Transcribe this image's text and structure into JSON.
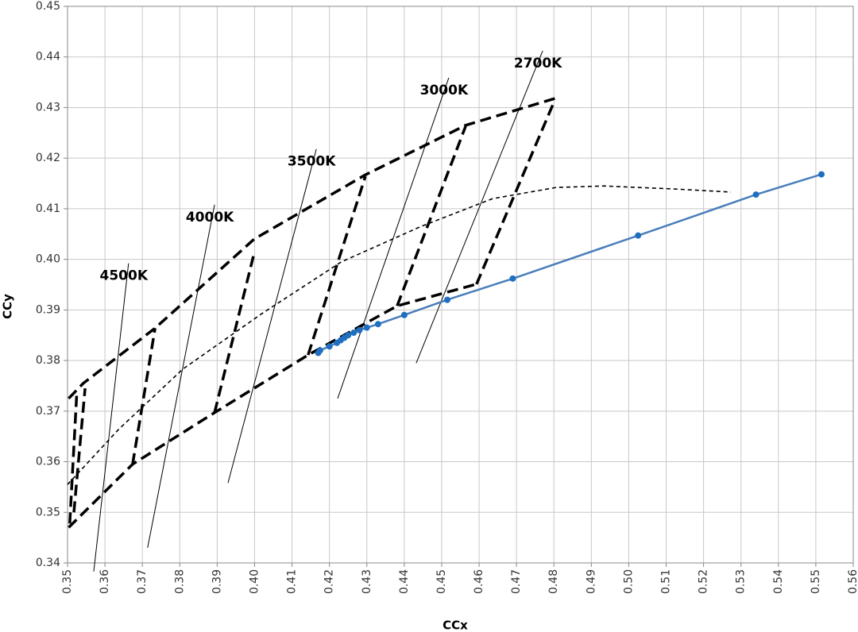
{
  "chart_data": {
    "type": "line",
    "x_label": "CCx",
    "y_label": "CCy",
    "xlim": [
      0.35,
      0.56
    ],
    "ylim": [
      0.34,
      0.45
    ],
    "xticks": [
      0.35,
      0.36,
      0.37,
      0.38,
      0.39,
      {
        "value": 0.4,
        "label": "0.40"
      },
      0.41,
      0.42,
      0.43,
      0.44,
      0.45,
      0.46,
      0.47,
      0.48,
      0.49,
      {
        "value": 0.5,
        "label": "0.50"
      },
      0.51,
      0.52,
      0.53,
      0.54,
      0.55,
      0.56
    ],
    "yticks": [
      0.34,
      0.35,
      0.36,
      0.37,
      0.38,
      0.39,
      {
        "value": 0.4,
        "label": "0.40"
      },
      0.41,
      0.42,
      0.43,
      0.44,
      0.45
    ],
    "grid": true,
    "series": [
      {
        "color": "#4a7ebb",
        "marker_color": "#1f6fc0",
        "x": [
          0.417,
          0.4175,
          0.42,
          0.422,
          0.423,
          0.424,
          0.425,
          0.4265,
          0.428,
          0.43,
          0.433,
          0.44,
          0.4515,
          0.469,
          0.5025,
          0.534,
          0.5515
        ],
        "values": [
          0.3815,
          0.382,
          0.3828,
          0.3835,
          0.384,
          0.3845,
          0.385,
          0.3855,
          0.386,
          0.3865,
          0.3872,
          0.389,
          0.392,
          0.3962,
          0.4047,
          0.4128,
          0.4168
        ]
      }
    ],
    "bins": [
      {
        "x": [
          0.3503,
          0.3542,
          0.3734,
          0.3999,
          0.4296,
          0.4564,
          0.4816
        ],
        "y": [
          0.3725,
          0.3755,
          0.3864,
          0.404,
          0.4167,
          0.4265,
          0.4321
        ]
      },
      {
        "x": [
          0.3503,
          0.3674,
          0.3893,
          0.4143,
          0.4381,
          0.4593
        ],
        "y": [
          0.347,
          0.3595,
          0.3697,
          0.3811,
          0.3908,
          0.3951
        ]
      },
      {
        "x": [
          0.3506,
          0.3525
        ],
        "y": [
          0.3478,
          0.374
        ]
      },
      {
        "x": [
          0.3517,
          0.3547
        ],
        "y": [
          0.35,
          0.3745
        ]
      },
      {
        "x": [
          0.3674,
          0.3734
        ],
        "y": [
          0.3595,
          0.3864
        ]
      },
      {
        "x": [
          0.3893,
          0.3999
        ],
        "y": [
          0.3697,
          0.4013
        ]
      },
      {
        "x": [
          0.4143,
          0.4296
        ],
        "y": [
          0.3811,
          0.4164
        ]
      },
      {
        "x": [
          0.4381,
          0.4564
        ],
        "y": [
          0.3908,
          0.4263
        ]
      },
      {
        "x": [
          0.4593,
          0.4799
        ],
        "y": [
          0.3951,
          0.4309
        ]
      }
    ],
    "isotherms": [
      {
        "name": "4500K",
        "x": [
          0.357,
          0.3663
        ],
        "y": [
          0.3383,
          0.3992
        ]
      },
      {
        "name": "4000K",
        "x": [
          0.3714,
          0.3893
        ],
        "y": [
          0.343,
          0.4108
        ]
      },
      {
        "name": "3500K",
        "x": [
          0.3929,
          0.4165
        ],
        "y": [
          0.3558,
          0.4218
        ]
      },
      {
        "name": "3000K",
        "x": [
          0.4222,
          0.4519
        ],
        "y": [
          0.3725,
          0.4359
        ]
      },
      {
        "name": "2700K",
        "x": [
          0.4432,
          0.477
        ],
        "y": [
          0.3795,
          0.4412
        ]
      }
    ],
    "planck_locus": {
      "x": [
        0.35,
        0.3638,
        0.3808,
        0.402,
        0.4232,
        0.4445,
        0.4636,
        0.4806,
        0.4933,
        0.5124,
        0.5273
      ],
      "y": [
        0.3555,
        0.3665,
        0.3783,
        0.3893,
        0.3995,
        0.4065,
        0.412,
        0.4142,
        0.4145,
        0.4139,
        0.4133
      ]
    }
  }
}
